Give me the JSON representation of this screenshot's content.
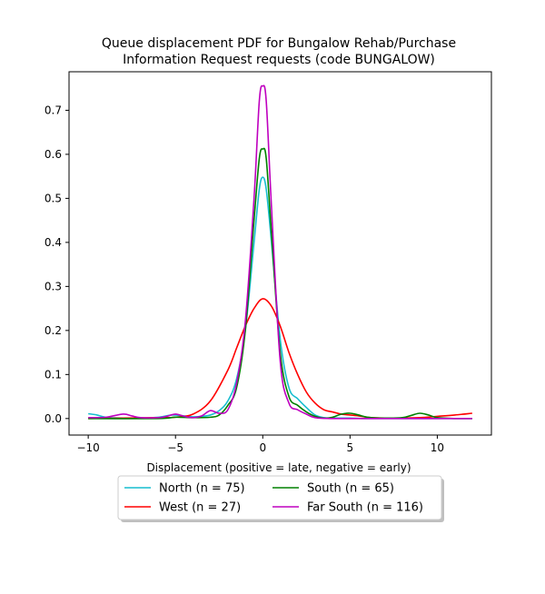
{
  "chart_data": {
    "type": "line",
    "title_lines": [
      "Queue displacement PDF for Bungalow Rehab/Purchase",
      "Information Request  requests (code BUNGALOW)"
    ],
    "xlabel": "Displacement (positive = late, negative = early)",
    "ylabel": "",
    "xlim": [
      -11.1,
      13.1
    ],
    "ylim": [
      -0.0375,
      0.7875
    ],
    "xticks": [
      "−10",
      "−5",
      "0",
      "5",
      "10"
    ],
    "xtick_values": [
      -10,
      -5,
      0,
      5,
      10
    ],
    "yticks": [
      "0.0",
      "0.1",
      "0.2",
      "0.3",
      "0.4",
      "0.5",
      "0.6",
      "0.7"
    ],
    "ytick_values": [
      0.0,
      0.1,
      0.2,
      0.3,
      0.4,
      0.5,
      0.6,
      0.7
    ],
    "grid": false,
    "legend_position": "below",
    "series": [
      {
        "name": "North (n = 75)",
        "color": "#17becf",
        "points": [
          [
            -10,
            0.011
          ],
          [
            -9.5,
            0.008
          ],
          [
            -9,
            0.003
          ],
          [
            -8,
            0.001
          ],
          [
            -7,
            0.001
          ],
          [
            -6,
            0.003
          ],
          [
            -5.2,
            0.008
          ],
          [
            -4.5,
            0.006
          ],
          [
            -4,
            0.004
          ],
          [
            -3.5,
            0.005
          ],
          [
            -3,
            0.008
          ],
          [
            -2.5,
            0.018
          ],
          [
            -2,
            0.04
          ],
          [
            -1.5,
            0.09
          ],
          [
            -1,
            0.2
          ],
          [
            -0.5,
            0.4
          ],
          [
            -0.2,
            0.52
          ],
          [
            0,
            0.548
          ],
          [
            0.2,
            0.52
          ],
          [
            0.5,
            0.4
          ],
          [
            1,
            0.18
          ],
          [
            1.5,
            0.07
          ],
          [
            2,
            0.045
          ],
          [
            2.5,
            0.025
          ],
          [
            3,
            0.008
          ],
          [
            3.5,
            0.002
          ],
          [
            4,
            0.001
          ],
          [
            5,
            0.001
          ],
          [
            6,
            0.0
          ],
          [
            8,
            0.0
          ],
          [
            10,
            0.0
          ],
          [
            12,
            0.0
          ]
        ]
      },
      {
        "name": "West (n = 27)",
        "color": "#ff0000",
        "points": [
          [
            -10,
            0.0
          ],
          [
            -8,
            0.001
          ],
          [
            -6,
            0.002
          ],
          [
            -5,
            0.003
          ],
          [
            -4,
            0.01
          ],
          [
            -3,
            0.04
          ],
          [
            -2,
            0.11
          ],
          [
            -1.5,
            0.16
          ],
          [
            -1,
            0.21
          ],
          [
            -0.5,
            0.25
          ],
          [
            0,
            0.272
          ],
          [
            0.5,
            0.255
          ],
          [
            1,
            0.21
          ],
          [
            1.5,
            0.15
          ],
          [
            2,
            0.1
          ],
          [
            2.5,
            0.06
          ],
          [
            3,
            0.035
          ],
          [
            3.5,
            0.02
          ],
          [
            4,
            0.015
          ],
          [
            4.5,
            0.01
          ],
          [
            5,
            0.008
          ],
          [
            5.5,
            0.006
          ],
          [
            6,
            0.003
          ],
          [
            7,
            0.001
          ],
          [
            8,
            0.001
          ],
          [
            9,
            0.002
          ],
          [
            10,
            0.005
          ],
          [
            11,
            0.008
          ],
          [
            12,
            0.012
          ]
        ]
      },
      {
        "name": "South (n = 65)",
        "color": "#008000",
        "points": [
          [
            -10,
            0.0
          ],
          [
            -6,
            0.0
          ],
          [
            -5,
            0.003
          ],
          [
            -4,
            0.002
          ],
          [
            -3,
            0.003
          ],
          [
            -2.5,
            0.008
          ],
          [
            -2,
            0.03
          ],
          [
            -1.5,
            0.07
          ],
          [
            -1,
            0.2
          ],
          [
            -0.5,
            0.45
          ],
          [
            -0.2,
            0.59
          ],
          [
            0,
            0.612
          ],
          [
            0.2,
            0.59
          ],
          [
            0.5,
            0.42
          ],
          [
            1,
            0.15
          ],
          [
            1.5,
            0.05
          ],
          [
            2,
            0.03
          ],
          [
            2.5,
            0.015
          ],
          [
            3,
            0.005
          ],
          [
            3.5,
            0.001
          ],
          [
            4,
            0.003
          ],
          [
            4.5,
            0.01
          ],
          [
            5,
            0.012
          ],
          [
            5.5,
            0.008
          ],
          [
            6,
            0.003
          ],
          [
            7,
            0.001
          ],
          [
            8,
            0.002
          ],
          [
            8.5,
            0.007
          ],
          [
            9,
            0.012
          ],
          [
            9.5,
            0.008
          ],
          [
            10,
            0.002
          ],
          [
            11,
            0.0
          ],
          [
            12,
            0.0
          ]
        ]
      },
      {
        "name": "Far South (n = 116)",
        "color": "#bf00bf",
        "points": [
          [
            -10,
            0.002
          ],
          [
            -9,
            0.003
          ],
          [
            -8,
            0.01
          ],
          [
            -7.5,
            0.006
          ],
          [
            -7,
            0.002
          ],
          [
            -6,
            0.002
          ],
          [
            -5.5,
            0.005
          ],
          [
            -5,
            0.01
          ],
          [
            -4.5,
            0.005
          ],
          [
            -4,
            0.002
          ],
          [
            -3.5,
            0.006
          ],
          [
            -3,
            0.018
          ],
          [
            -2.5,
            0.012
          ],
          [
            -2,
            0.02
          ],
          [
            -1.5,
            0.08
          ],
          [
            -1,
            0.22
          ],
          [
            -0.5,
            0.5
          ],
          [
            -0.2,
            0.72
          ],
          [
            0,
            0.755
          ],
          [
            0.2,
            0.72
          ],
          [
            0.5,
            0.48
          ],
          [
            1,
            0.13
          ],
          [
            1.5,
            0.035
          ],
          [
            2,
            0.02
          ],
          [
            2.5,
            0.01
          ],
          [
            3,
            0.002
          ],
          [
            4,
            0.0
          ],
          [
            6,
            0.0
          ],
          [
            8,
            0.0
          ],
          [
            10,
            0.0
          ],
          [
            12,
            0.0
          ]
        ]
      }
    ]
  }
}
